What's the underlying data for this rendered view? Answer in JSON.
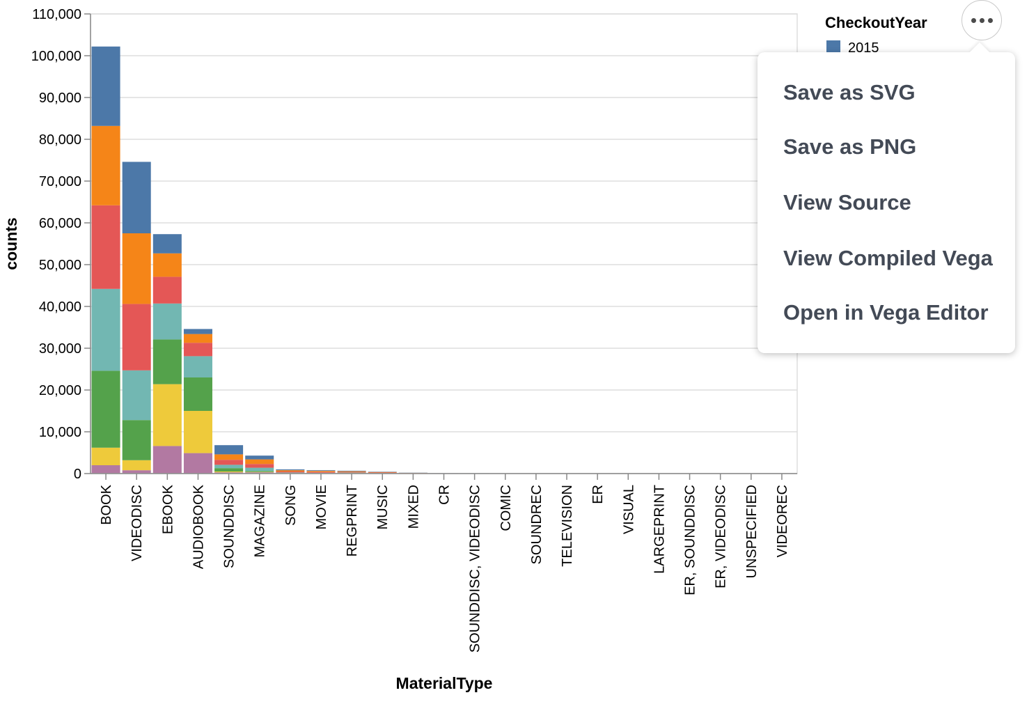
{
  "chart_data": {
    "type": "bar",
    "stacked": true,
    "xlabel": "MaterialType",
    "ylabel": "counts",
    "ylim": [
      0,
      110000
    ],
    "yticks": [
      0,
      10000,
      20000,
      30000,
      40000,
      50000,
      60000,
      70000,
      80000,
      90000,
      100000,
      110000
    ],
    "ytick_labels": [
      "0",
      "10,000",
      "20,000",
      "30,000",
      "40,000",
      "50,000",
      "60,000",
      "70,000",
      "80,000",
      "90,000",
      "100,000",
      "110,000"
    ],
    "grid": true,
    "legend": {
      "title": "CheckoutYear",
      "position": "top-right",
      "visible_entries": [
        "2015"
      ]
    },
    "categories": [
      "BOOK",
      "VIDEODISC",
      "EBOOK",
      "AUDIOBOOK",
      "SOUNDDISC",
      "MAGAZINE",
      "SONG",
      "MOVIE",
      "REGPRINT",
      "MUSIC",
      "MIXED",
      "CR",
      "SOUNDDISC, VIDEODISC",
      "COMIC",
      "SOUNDREC",
      "TELEVISION",
      "ER",
      "VISUAL",
      "LARGEPRINT",
      "ER, SOUNDDISC",
      "ER, VIDEODISC",
      "UNSPECIFIED",
      "VIDEOREC"
    ],
    "series": [
      {
        "color": "#b279a2",
        "values": [
          2000,
          800,
          6600,
          4900,
          300,
          300,
          80,
          60,
          100,
          60,
          30,
          10,
          10,
          5,
          5,
          5,
          3,
          3,
          3,
          2,
          2,
          2,
          1
        ]
      },
      {
        "color": "#eeca3b",
        "values": [
          4200,
          2400,
          14800,
          10100,
          200,
          100,
          40,
          30,
          30,
          20,
          20,
          10,
          5,
          5,
          5,
          5,
          3,
          3,
          3,
          2,
          2,
          2,
          1
        ]
      },
      {
        "color": "#54a24b",
        "values": [
          18400,
          9600,
          10700,
          8000,
          800,
          200,
          60,
          40,
          60,
          30,
          20,
          10,
          10,
          5,
          5,
          5,
          3,
          3,
          3,
          2,
          2,
          2,
          1
        ]
      },
      {
        "color": "#72b7b2",
        "values": [
          19600,
          11900,
          8600,
          5100,
          800,
          800,
          80,
          60,
          60,
          50,
          20,
          10,
          10,
          5,
          5,
          5,
          3,
          3,
          3,
          2,
          2,
          2,
          1
        ]
      },
      {
        "color": "#e45756",
        "values": [
          20000,
          15900,
          6400,
          3200,
          1200,
          900,
          240,
          200,
          150,
          100,
          40,
          20,
          20,
          10,
          10,
          5,
          3,
          3,
          3,
          2,
          2,
          2,
          1
        ]
      },
      {
        "color": "#f58518",
        "values": [
          19000,
          16900,
          5600,
          2100,
          1300,
          1100,
          300,
          250,
          160,
          110,
          50,
          20,
          20,
          10,
          10,
          5,
          3,
          3,
          3,
          2,
          2,
          2,
          1
        ]
      },
      {
        "name": "2015",
        "color": "#4c78a8",
        "values": [
          19000,
          17100,
          4600,
          1200,
          2200,
          900,
          200,
          160,
          120,
          80,
          40,
          20,
          20,
          10,
          10,
          5,
          3,
          3,
          3,
          2,
          2,
          2,
          1
        ]
      }
    ]
  },
  "actions": {
    "button_label": "•••",
    "items": [
      "Save as SVG",
      "Save as PNG",
      "View Source",
      "View Compiled Vega",
      "Open in Vega Editor"
    ]
  }
}
